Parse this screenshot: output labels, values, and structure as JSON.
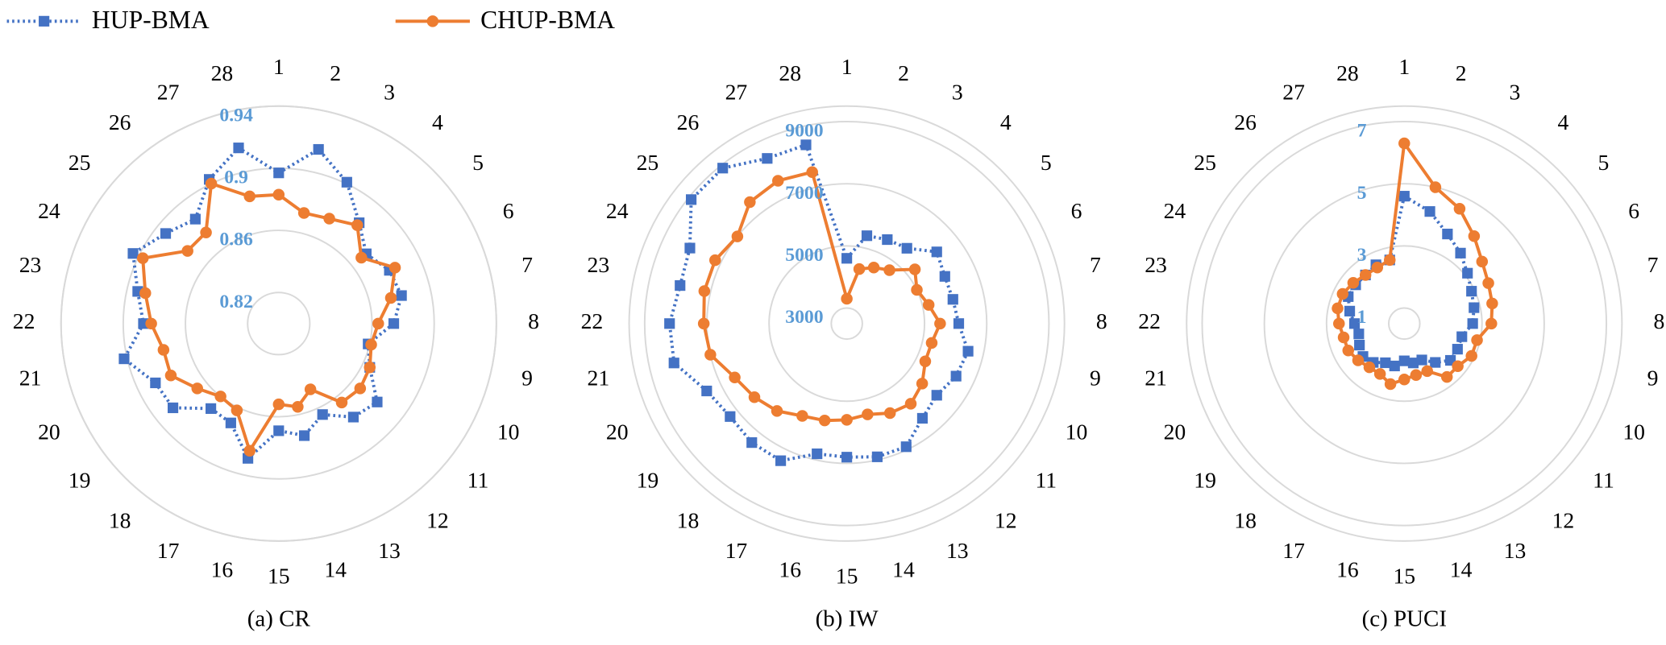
{
  "chart_data": [
    {
      "type": "radar",
      "title": "(a) CR",
      "categories": [
        "1",
        "2",
        "3",
        "4",
        "5",
        "6",
        "7",
        "8",
        "9",
        "10",
        "11",
        "12",
        "13",
        "14",
        "15",
        "16",
        "17",
        "18",
        "19",
        "20",
        "21",
        "22",
        "23",
        "24",
        "25",
        "26",
        "27",
        "28"
      ],
      "ylim": [
        0.8,
        0.94
      ],
      "yticks": [
        0.82,
        0.86,
        0.9,
        0.94
      ],
      "grid": true,
      "series": [
        {
          "name": "HUP-BMA",
          "color": "#4472c4",
          "line_style": "dotted",
          "marker": "square",
          "values": [
            0.897,
            0.915,
            0.901,
            0.883,
            0.872,
            0.879,
            0.881,
            0.874,
            0.859,
            0.865,
            0.881,
            0.877,
            0.865,
            0.874,
            0.869,
            0.889,
            0.871,
            0.87,
            0.887,
            0.888,
            0.902,
            0.887,
            0.893,
            0.904,
            0.893,
            0.886,
            0.903,
            0.916
          ]
        },
        {
          "name": "CHUP-BMA",
          "color": "#ed7d31",
          "line_style": "solid",
          "marker": "circle",
          "values": [
            0.883,
            0.873,
            0.875,
            0.881,
            0.868,
            0.883,
            0.874,
            0.864,
            0.861,
            0.865,
            0.867,
            0.865,
            0.847,
            0.855,
            0.852,
            0.884,
            0.862,
            0.86,
            0.867,
            0.877,
            0.876,
            0.882,
            0.888,
            0.897,
            0.875,
            0.875,
            0.9,
            0.884
          ]
        }
      ]
    },
    {
      "type": "radar",
      "title": "(b) IW",
      "categories": [
        "1",
        "2",
        "3",
        "4",
        "5",
        "6",
        "7",
        "8",
        "9",
        "10",
        "11",
        "12",
        "13",
        "14",
        "15",
        "16",
        "17",
        "18",
        "19",
        "20",
        "21",
        "22",
        "23",
        "24",
        "25",
        "26",
        "27",
        "28"
      ],
      "ylim": [
        2500,
        9500
      ],
      "yticks": [
        3000,
        5000,
        7000,
        9000
      ],
      "grid": true,
      "series": [
        {
          "name": "HUP-BMA",
          "color": "#4472c4",
          "line_style": "dotted",
          "marker": "square",
          "values": [
            4600,
            5400,
            5500,
            5600,
            6200,
            6000,
            6000,
            6100,
            6500,
            6400,
            6200,
            6400,
            6900,
            6900,
            6800,
            6800,
            7400,
            7400,
            7300,
            7500,
            8200,
            8200,
            8000,
            8100,
            8900,
            8900,
            8400,
            8400
          ]
        },
        {
          "name": "CHUP-BMA",
          "color": "#ed7d31",
          "line_style": "solid",
          "marker": "circle",
          "values": [
            3300,
            4300,
            4500,
            4700,
            5300,
            5000,
            5200,
            5500,
            5300,
            5300,
            5600,
            5800,
            5700,
            5500,
            5600,
            5700,
            5800,
            6100,
            6300,
            6500,
            7000,
            7100,
            7200,
            7200,
            7000,
            7500,
            7600,
            7500
          ]
        }
      ]
    },
    {
      "type": "radar",
      "title": "(c) PUCI",
      "categories": [
        "1",
        "2",
        "3",
        "4",
        "5",
        "6",
        "7",
        "8",
        "9",
        "10",
        "11",
        "12",
        "13",
        "14",
        "15",
        "16",
        "17",
        "18",
        "19",
        "20",
        "21",
        "22",
        "23",
        "24",
        "25",
        "26",
        "27",
        "28"
      ],
      "ylim": [
        0.5,
        7.5
      ],
      "yticks": [
        1,
        3,
        5,
        7
      ],
      "grid": true,
      "series": [
        {
          "name": "HUP-BMA",
          "color": "#4472c4",
          "line_style": "dotted",
          "marker": "square",
          "values": [
            4.6,
            4.2,
            3.7,
            3.4,
            3.1,
            2.9,
            2.8,
            2.7,
            2.4,
            2.4,
            2.4,
            2.1,
            1.8,
            1.8,
            1.7,
            1.9,
            1.9,
            2.1,
            2.2,
            2.1,
            2.0,
            2.1,
            2.3,
            2.5,
            2.5,
            2.5,
            2.6,
            2.6
          ]
        },
        {
          "name": "CHUP-BMA",
          "color": "#ed7d31",
          "line_style": "solid",
          "marker": "circle",
          "values": [
            6.3,
            5.0,
            4.6,
            4.1,
            3.7,
            3.5,
            3.4,
            3.3,
            2.9,
            2.9,
            2.7,
            2.7,
            2.2,
            2.2,
            2.3,
            2.5,
            2.3,
            2.3,
            2.4,
            2.5,
            2.5,
            2.6,
            2.7,
            2.7,
            2.6,
            2.5,
            2.5,
            2.6
          ]
        }
      ]
    }
  ]
}
